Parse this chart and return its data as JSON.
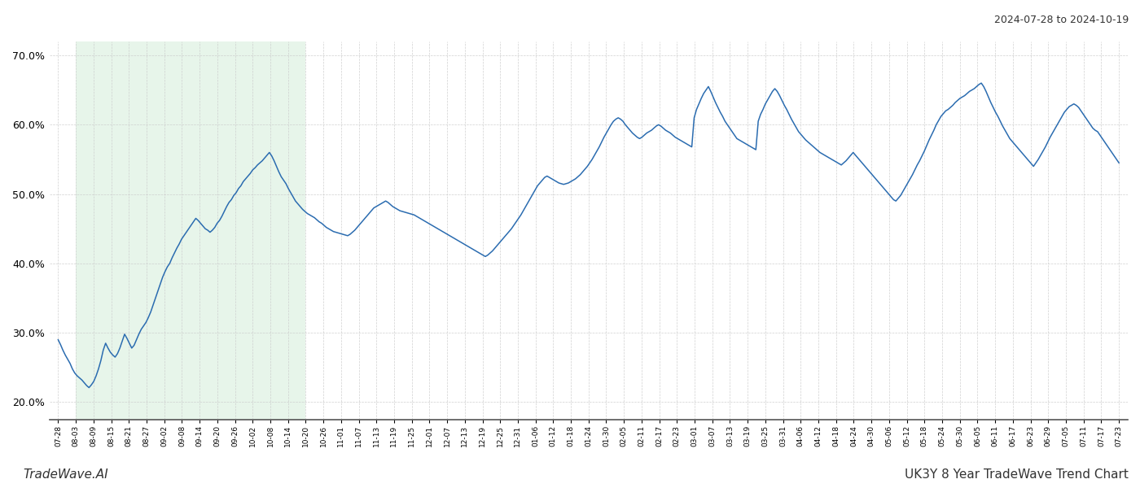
{
  "title_top_right": "2024-07-28 to 2024-10-19",
  "title_bottom_right": "UK3Y 8 Year TradeWave Trend Chart",
  "title_bottom_left": "TradeWave.AI",
  "line_color": "#2b6cb0",
  "line_width": 1.1,
  "shade_color": "#d4edda",
  "shade_alpha": 0.55,
  "background_color": "#ffffff",
  "grid_color": "#cccccc",
  "grid_style": "--",
  "ylim_low": 0.175,
  "ylim_high": 0.72,
  "yticks": [
    0.2,
    0.3,
    0.4,
    0.5,
    0.6,
    0.7
  ],
  "shade_start_label": "08-03",
  "shade_end_label": "10-20",
  "x_labels": [
    "07-28",
    "08-03",
    "08-09",
    "08-15",
    "08-21",
    "08-27",
    "09-02",
    "09-08",
    "09-14",
    "09-20",
    "09-26",
    "10-02",
    "10-08",
    "10-14",
    "10-20",
    "10-26",
    "11-01",
    "11-07",
    "11-13",
    "11-19",
    "11-25",
    "12-01",
    "12-07",
    "12-13",
    "12-19",
    "12-25",
    "12-31",
    "01-06",
    "01-12",
    "01-18",
    "01-24",
    "01-30",
    "02-05",
    "02-11",
    "02-17",
    "02-23",
    "03-01",
    "03-07",
    "03-13",
    "03-19",
    "03-25",
    "03-31",
    "04-06",
    "04-12",
    "04-18",
    "04-24",
    "04-30",
    "05-06",
    "05-12",
    "05-18",
    "05-24",
    "05-30",
    "06-05",
    "06-11",
    "06-17",
    "06-23",
    "06-29",
    "07-05",
    "07-11",
    "07-17",
    "07-23"
  ],
  "y_values": [
    0.29,
    0.283,
    0.275,
    0.268,
    0.262,
    0.256,
    0.248,
    0.242,
    0.238,
    0.235,
    0.232,
    0.228,
    0.224,
    0.221,
    0.225,
    0.23,
    0.238,
    0.248,
    0.26,
    0.275,
    0.285,
    0.278,
    0.272,
    0.268,
    0.265,
    0.27,
    0.278,
    0.288,
    0.298,
    0.292,
    0.285,
    0.278,
    0.282,
    0.29,
    0.298,
    0.305,
    0.31,
    0.315,
    0.322,
    0.33,
    0.34,
    0.35,
    0.36,
    0.37,
    0.38,
    0.388,
    0.395,
    0.4,
    0.408,
    0.415,
    0.422,
    0.428,
    0.435,
    0.44,
    0.445,
    0.45,
    0.455,
    0.46,
    0.465,
    0.462,
    0.458,
    0.454,
    0.45,
    0.448,
    0.445,
    0.448,
    0.452,
    0.458,
    0.462,
    0.468,
    0.475,
    0.482,
    0.488,
    0.492,
    0.498,
    0.502,
    0.508,
    0.512,
    0.518,
    0.522,
    0.526,
    0.53,
    0.535,
    0.538,
    0.542,
    0.545,
    0.548,
    0.552,
    0.556,
    0.56,
    0.555,
    0.548,
    0.54,
    0.532,
    0.525,
    0.52,
    0.515,
    0.508,
    0.502,
    0.496,
    0.49,
    0.486,
    0.482,
    0.478,
    0.475,
    0.472,
    0.47,
    0.468,
    0.466,
    0.463,
    0.46,
    0.458,
    0.455,
    0.452,
    0.45,
    0.448,
    0.446,
    0.445,
    0.444,
    0.443,
    0.442,
    0.441,
    0.44,
    0.442,
    0.445,
    0.448,
    0.452,
    0.456,
    0.46,
    0.464,
    0.468,
    0.472,
    0.476,
    0.48,
    0.482,
    0.484,
    0.486,
    0.488,
    0.49,
    0.488,
    0.485,
    0.482,
    0.48,
    0.478,
    0.476,
    0.475,
    0.474,
    0.473,
    0.472,
    0.471,
    0.47,
    0.468,
    0.466,
    0.464,
    0.462,
    0.46,
    0.458,
    0.456,
    0.454,
    0.452,
    0.45,
    0.448,
    0.446,
    0.444,
    0.442,
    0.44,
    0.438,
    0.436,
    0.434,
    0.432,
    0.43,
    0.428,
    0.426,
    0.424,
    0.422,
    0.42,
    0.418,
    0.416,
    0.414,
    0.412,
    0.41,
    0.412,
    0.415,
    0.418,
    0.422,
    0.426,
    0.43,
    0.434,
    0.438,
    0.442,
    0.446,
    0.45,
    0.455,
    0.46,
    0.465,
    0.47,
    0.476,
    0.482,
    0.488,
    0.494,
    0.5,
    0.506,
    0.512,
    0.516,
    0.52,
    0.524,
    0.526,
    0.524,
    0.522,
    0.52,
    0.518,
    0.516,
    0.515,
    0.514,
    0.515,
    0.516,
    0.518,
    0.52,
    0.522,
    0.525,
    0.528,
    0.532,
    0.536,
    0.54,
    0.545,
    0.55,
    0.556,
    0.562,
    0.568,
    0.575,
    0.582,
    0.588,
    0.594,
    0.6,
    0.605,
    0.608,
    0.61,
    0.608,
    0.605,
    0.6,
    0.596,
    0.592,
    0.588,
    0.585,
    0.582,
    0.58,
    0.582,
    0.585,
    0.588,
    0.59,
    0.592,
    0.595,
    0.598,
    0.6,
    0.598,
    0.595,
    0.592,
    0.59,
    0.588,
    0.585,
    0.582,
    0.58,
    0.578,
    0.576,
    0.574,
    0.572,
    0.57,
    0.568,
    0.61,
    0.622,
    0.63,
    0.638,
    0.645,
    0.65,
    0.655,
    0.648,
    0.64,
    0.632,
    0.625,
    0.618,
    0.612,
    0.605,
    0.6,
    0.595,
    0.59,
    0.585,
    0.58,
    0.578,
    0.576,
    0.574,
    0.572,
    0.57,
    0.568,
    0.566,
    0.564,
    0.605,
    0.615,
    0.622,
    0.63,
    0.636,
    0.642,
    0.648,
    0.652,
    0.648,
    0.642,
    0.635,
    0.628,
    0.622,
    0.615,
    0.608,
    0.602,
    0.596,
    0.59,
    0.586,
    0.582,
    0.578,
    0.575,
    0.572,
    0.569,
    0.566,
    0.563,
    0.56,
    0.558,
    0.556,
    0.554,
    0.552,
    0.55,
    0.548,
    0.546,
    0.544,
    0.542,
    0.545,
    0.548,
    0.552,
    0.556,
    0.56,
    0.556,
    0.552,
    0.548,
    0.544,
    0.54,
    0.536,
    0.532,
    0.528,
    0.524,
    0.52,
    0.516,
    0.512,
    0.508,
    0.504,
    0.5,
    0.496,
    0.492,
    0.49,
    0.494,
    0.498,
    0.504,
    0.51,
    0.516,
    0.522,
    0.528,
    0.535,
    0.542,
    0.548,
    0.555,
    0.562,
    0.57,
    0.578,
    0.585,
    0.592,
    0.6,
    0.606,
    0.612,
    0.616,
    0.62,
    0.622,
    0.625,
    0.628,
    0.632,
    0.635,
    0.638,
    0.64,
    0.642,
    0.645,
    0.648,
    0.65,
    0.652,
    0.655,
    0.658,
    0.66,
    0.655,
    0.648,
    0.64,
    0.632,
    0.625,
    0.618,
    0.612,
    0.605,
    0.598,
    0.592,
    0.586,
    0.58,
    0.576,
    0.572,
    0.568,
    0.564,
    0.56,
    0.556,
    0.552,
    0.548,
    0.544,
    0.54,
    0.545,
    0.55,
    0.556,
    0.562,
    0.568,
    0.575,
    0.582,
    0.588,
    0.594,
    0.6,
    0.606,
    0.612,
    0.618,
    0.622,
    0.626,
    0.628,
    0.63,
    0.628,
    0.625,
    0.62,
    0.615,
    0.61,
    0.605,
    0.6,
    0.595,
    0.592,
    0.59,
    0.585,
    0.58,
    0.575,
    0.57,
    0.565,
    0.56,
    0.555,
    0.55,
    0.545
  ]
}
